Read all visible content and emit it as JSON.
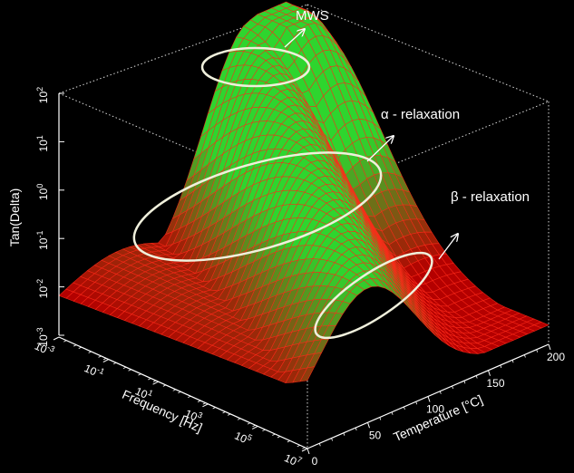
{
  "chart_data": {
    "type": "surface3d",
    "z_axis": {
      "label": "Tan(Delta)",
      "scale": "log",
      "range": [
        0.001,
        100
      ],
      "ticks": [
        {
          "base": "10",
          "exp": "2",
          "value": 100
        },
        {
          "base": "10",
          "exp": "1",
          "value": 10
        },
        {
          "base": "10",
          "exp": "0",
          "value": 1
        },
        {
          "base": "10",
          "exp": "-1",
          "value": 0.1
        },
        {
          "base": "10",
          "exp": "-2",
          "value": 0.01
        },
        {
          "base": "10",
          "exp": "-3",
          "value": 0.001
        }
      ]
    },
    "frequency_axis": {
      "label": "Frequency [Hz]",
      "scale": "log",
      "range": [
        0.001,
        10000000
      ],
      "ticks": [
        {
          "base": "10",
          "exp": "-3",
          "value": 0.001
        },
        {
          "base": "10",
          "exp": "-1",
          "value": 0.1
        },
        {
          "base": "10",
          "exp": "1",
          "value": 10
        },
        {
          "base": "10",
          "exp": "3",
          "value": 1000
        },
        {
          "base": "10",
          "exp": "5",
          "value": 100000
        },
        {
          "base": "10",
          "exp": "7",
          "value": 10000000
        }
      ]
    },
    "temperature_axis": {
      "label": "Temperature [°C]",
      "range": [
        0,
        200
      ],
      "ticks": [
        "0",
        "50",
        "100",
        "150",
        "200"
      ]
    },
    "annotations": [
      {
        "text": "MWS",
        "name": "mws"
      },
      {
        "text": "α - relaxation",
        "name": "alpha-relaxation"
      },
      {
        "text": "β - relaxation",
        "name": "beta-relaxation"
      }
    ],
    "colors": {
      "surface_high": "#2ed52e",
      "surface_low": "#b40000",
      "mesh": "#ff2a1a",
      "frame": "#d8d8d8",
      "ellipse": "#f0f0dc"
    },
    "grid": false
  }
}
